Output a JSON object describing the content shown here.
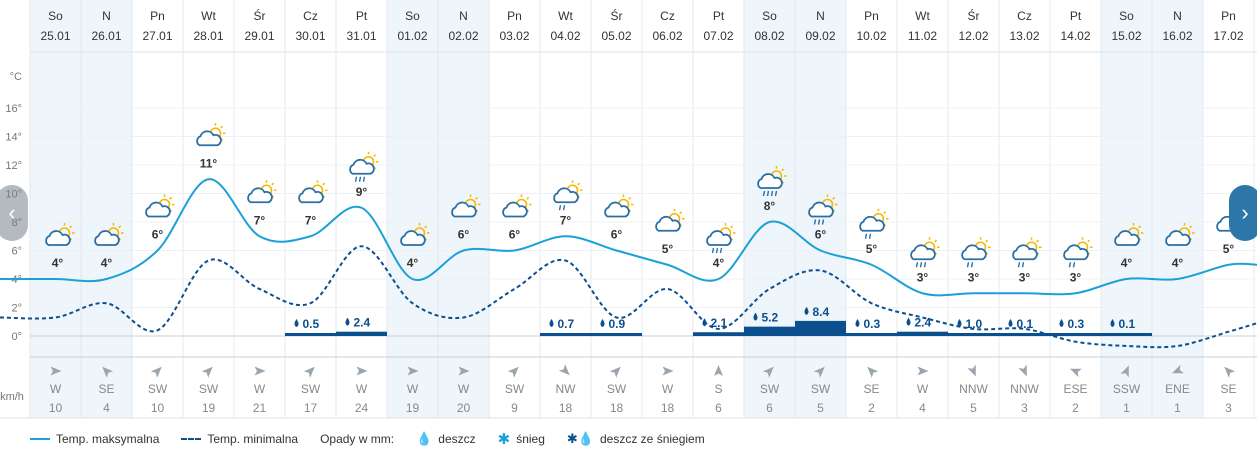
{
  "days": [
    {
      "dow": "So",
      "date": "25.01",
      "weekend": true,
      "max": 4,
      "icon": "partly-cloudy",
      "rain": null,
      "dir": "W",
      "wind": 10
    },
    {
      "dow": "N",
      "date": "26.01",
      "weekend": true,
      "max": 4,
      "icon": "partly-cloudy",
      "rain": null,
      "dir": "SE",
      "wind": 4
    },
    {
      "dow": "Pn",
      "date": "27.01",
      "weekend": false,
      "max": 6,
      "icon": "partly-cloudy",
      "rain": null,
      "dir": "SW",
      "wind": 10
    },
    {
      "dow": "Wt",
      "date": "28.01",
      "weekend": false,
      "max": 11,
      "icon": "partly-cloudy",
      "rain": null,
      "dir": "SW",
      "wind": 19
    },
    {
      "dow": "Śr",
      "date": "29.01",
      "weekend": false,
      "max": 7,
      "icon": "partly-cloudy",
      "rain": null,
      "dir": "W",
      "wind": 21
    },
    {
      "dow": "Cz",
      "date": "30.01",
      "weekend": false,
      "max": 7,
      "icon": "partly-cloudy",
      "rain": "0.5",
      "dir": "SW",
      "wind": 17
    },
    {
      "dow": "Pt",
      "date": "31.01",
      "weekend": false,
      "max": 9,
      "icon": "rain",
      "rain": "2.4",
      "dir": "W",
      "wind": 24
    },
    {
      "dow": "So",
      "date": "01.02",
      "weekend": true,
      "max": 4,
      "icon": "partly-cloudy",
      "rain": null,
      "dir": "W",
      "wind": 19
    },
    {
      "dow": "N",
      "date": "02.02",
      "weekend": true,
      "max": 6,
      "icon": "partly-cloudy",
      "rain": null,
      "dir": "W",
      "wind": 20
    },
    {
      "dow": "Pn",
      "date": "03.02",
      "weekend": false,
      "max": 6,
      "icon": "partly-cloudy",
      "rain": null,
      "dir": "SW",
      "wind": 9
    },
    {
      "dow": "Wt",
      "date": "04.02",
      "weekend": false,
      "max": 7,
      "icon": "light-rain",
      "rain": "0.7",
      "dir": "NW",
      "wind": 18
    },
    {
      "dow": "Śr",
      "date": "05.02",
      "weekend": false,
      "max": 6,
      "icon": "partly-cloudy",
      "rain": "0.9",
      "dir": "SW",
      "wind": 18
    },
    {
      "dow": "Cz",
      "date": "06.02",
      "weekend": false,
      "max": 5,
      "icon": "partly-cloudy",
      "rain": null,
      "dir": "W",
      "wind": 18
    },
    {
      "dow": "Pt",
      "date": "07.02",
      "weekend": false,
      "max": 4,
      "icon": "rain",
      "rain": "2.1",
      "dir": "S",
      "wind": 6
    },
    {
      "dow": "So",
      "date": "08.02",
      "weekend": true,
      "max": 8,
      "icon": "heavy-rain",
      "rain": "5.2",
      "dir": "SW",
      "wind": 6
    },
    {
      "dow": "N",
      "date": "09.02",
      "weekend": true,
      "max": 6,
      "icon": "rain",
      "rain": "8.4",
      "dir": "SW",
      "wind": 5
    },
    {
      "dow": "Pn",
      "date": "10.02",
      "weekend": false,
      "max": 5,
      "icon": "light-rain",
      "rain": "0.3",
      "dir": "SE",
      "wind": 2
    },
    {
      "dow": "Wt",
      "date": "11.02",
      "weekend": false,
      "max": 3,
      "icon": "rain",
      "rain": "2.4",
      "dir": "W",
      "wind": 4
    },
    {
      "dow": "Śr",
      "date": "12.02",
      "weekend": false,
      "max": 3,
      "icon": "light-rain",
      "rain": "1.0",
      "dir": "NNW",
      "wind": 5
    },
    {
      "dow": "Cz",
      "date": "13.02",
      "weekend": false,
      "max": 3,
      "icon": "light-rain",
      "rain": "0.1",
      "dir": "NNW",
      "wind": 3
    },
    {
      "dow": "Pt",
      "date": "14.02",
      "weekend": false,
      "max": 3,
      "icon": "light-rain",
      "rain": "0.3",
      "dir": "ESE",
      "wind": 2
    },
    {
      "dow": "So",
      "date": "15.02",
      "weekend": true,
      "max": 4,
      "icon": "partly-cloudy",
      "rain": "0.1",
      "dir": "SSW",
      "wind": 1
    },
    {
      "dow": "N",
      "date": "16.02",
      "weekend": true,
      "max": 4,
      "icon": "partly-cloudy",
      "rain": null,
      "dir": "ENE",
      "wind": 1
    },
    {
      "dow": "Pn",
      "date": "17.02",
      "weekend": false,
      "max": 5,
      "icon": "partly-cloudy",
      "rain": null,
      "dir": "SE",
      "wind": 3
    }
  ],
  "min_temps": [
    1.3,
    2.3,
    0.4,
    5.3,
    3.3,
    2.3,
    6.3,
    2.3,
    1.3,
    3.3,
    5.3,
    1.3,
    3.3,
    0.5,
    3.3,
    4.6,
    2.3,
    1.3,
    0.5,
    0.5,
    -0.4,
    -0.7,
    -0.7,
    0.3
  ],
  "axis": {
    "unit": "°C",
    "ticks": [
      16,
      14,
      12,
      10,
      8,
      6,
      4,
      2,
      0
    ],
    "wind_unit": "km/h"
  },
  "legend": {
    "max_label": "Temp. maksymalna",
    "min_label": "Temp. minimalna",
    "precip_title": "Opady w mm:",
    "rain_label": "deszcz",
    "snow_label": "śnieg",
    "sleet_label": "deszcz ze śniegiem"
  },
  "nav": {
    "prev": "‹",
    "next": "›"
  },
  "colors": {
    "line": "#1aa1d6",
    "bar": "#0b4f8f",
    "weekend": "#eef5fb",
    "sun": "#f6b700",
    "cloud": "#2a6fa4",
    "arrow": "#9aa5ae"
  }
}
